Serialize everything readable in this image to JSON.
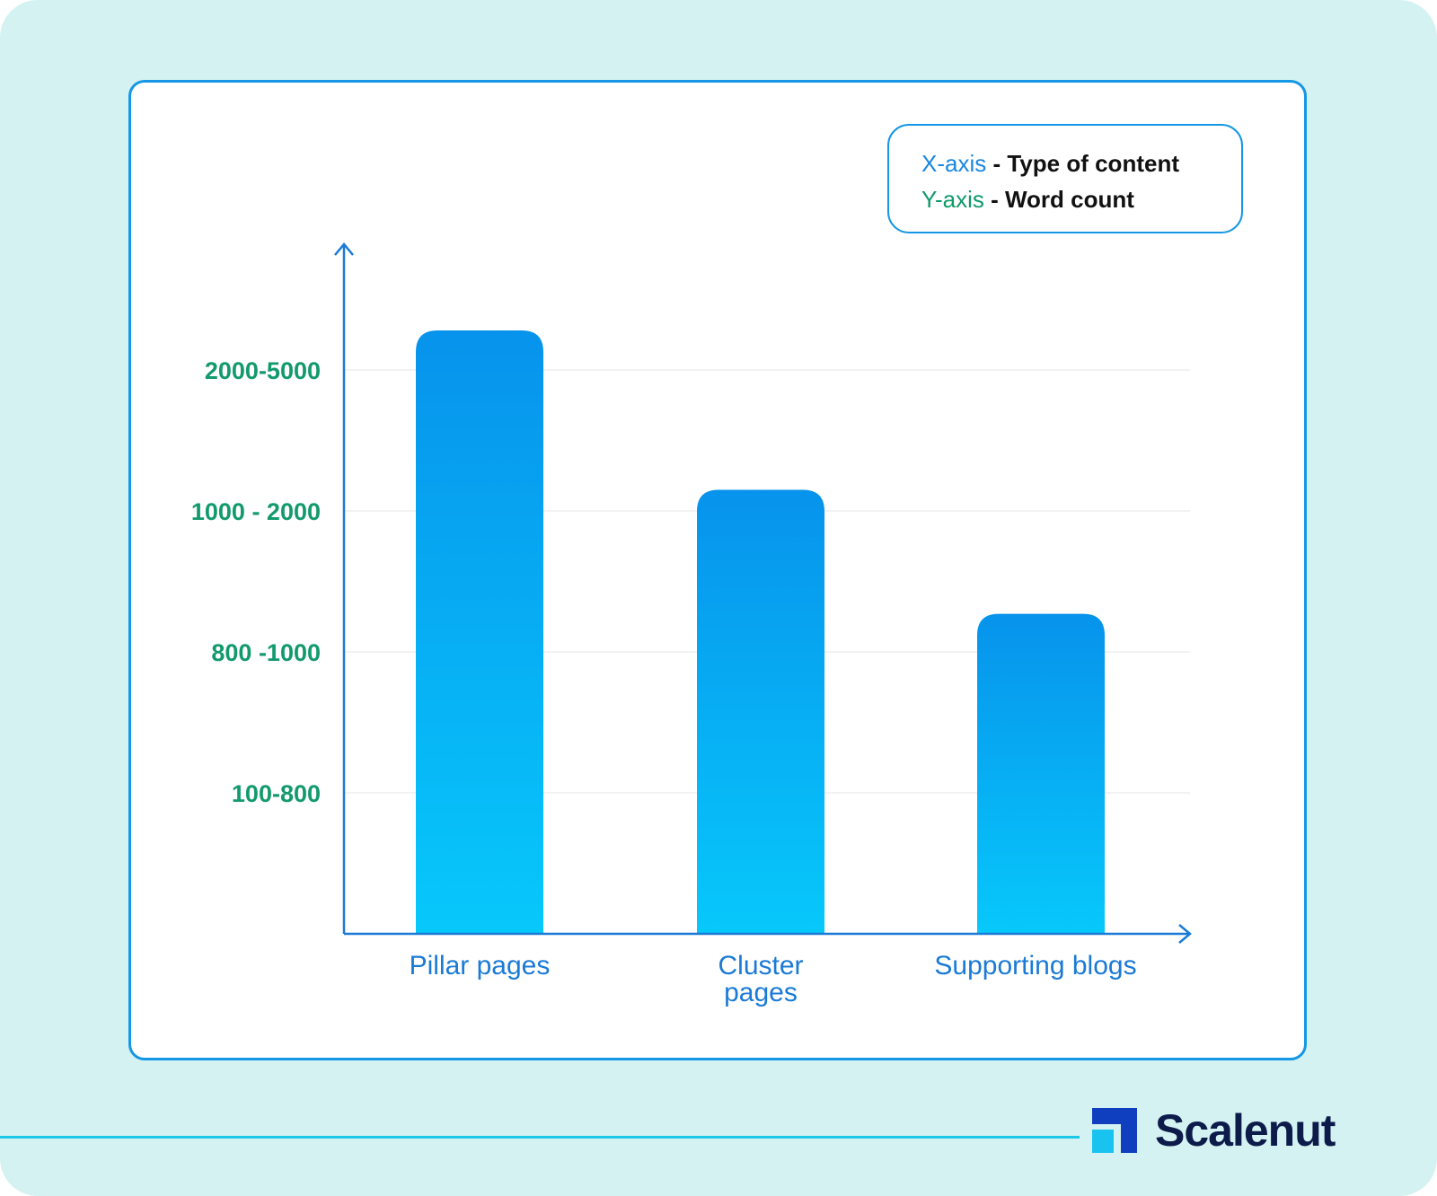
{
  "legend": {
    "x_key": "X-axis",
    "x_value": " - Type of content",
    "y_key": "Y-axis",
    "y_value": " - Word count"
  },
  "chart_data": {
    "type": "bar",
    "categories": [
      "Pillar pages",
      "Cluster pages",
      "Supporting blogs"
    ],
    "category_lines": [
      [
        "Pillar pages"
      ],
      [
        "Cluster",
        "pages"
      ],
      [
        "Supporting blogs"
      ]
    ],
    "y_ticks": [
      "100-800",
      "800 -1000",
      "1000 - 2000",
      "2000-5000"
    ],
    "values": [
      4.28,
      3.15,
      2.27
    ],
    "ylim": [
      0,
      5
    ],
    "value_scale_note": "bar heights are in ordinal tick units: tick 1 = 100-800, tick 2 = 800 -1000, tick 3 = 1000 - 2000, tick 4 = 2000-5000",
    "grid": true,
    "colors": {
      "bar_top": "#0793ec",
      "bar_bottom": "#07c8fb",
      "axis": "#1a7ad6",
      "grid": "#eeeeee"
    }
  },
  "brand": {
    "name": "Scalenut"
  }
}
